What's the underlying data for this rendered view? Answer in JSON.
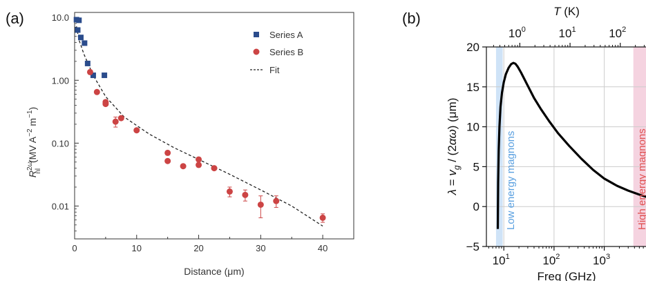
{
  "chart_data": [
    {
      "type": "scatter",
      "panel_label": "(a)",
      "xlabel": "Distance (μm)",
      "ylabel": "R_nl^2ω (MV A^-2 m^-1)",
      "ylabel_parts": {
        "main": "R",
        "sup": "2ω",
        "sub": "nl",
        "units": " (MV A",
        "unit_exp1": "−2",
        "units2": " m",
        "unit_exp2": "−1",
        "units3": ")"
      },
      "xlim": [
        0,
        45
      ],
      "ylim": [
        0.003,
        12
      ],
      "yscale": "log",
      "x_ticks": [
        0,
        10,
        20,
        30,
        40
      ],
      "x_tick_labels": [
        "0",
        "10",
        "20",
        "30",
        "40"
      ],
      "y_ticks": [
        0.01,
        0.1,
        1,
        10
      ],
      "y_tick_labels": [
        "0.01",
        "0.10",
        "1.00",
        "10.0"
      ],
      "legend_position": "top-right",
      "series": [
        {
          "name": "Series A",
          "marker": "square",
          "color": "#2b4c8c",
          "x": [
            0.3,
            0.5,
            0.7,
            1.0,
            1.6,
            2.1,
            3.0,
            4.8
          ],
          "y": [
            9.2,
            6.3,
            9.0,
            4.8,
            3.9,
            1.85,
            1.2,
            1.2
          ]
        },
        {
          "name": "Series B",
          "marker": "circle",
          "color": "#cc4444",
          "x": [
            2.5,
            3.6,
            5.0,
            5.0,
            6.6,
            7.5,
            10.0,
            15.0,
            15.0,
            17.5,
            20.0,
            20.0,
            22.5,
            25.0,
            27.5,
            30.0,
            32.5,
            40.0
          ],
          "y": [
            1.35,
            0.65,
            0.45,
            0.42,
            0.22,
            0.25,
            0.16,
            0.07,
            0.052,
            0.043,
            0.055,
            0.045,
            0.04,
            0.017,
            0.015,
            0.0105,
            0.012,
            0.0065
          ],
          "err": [
            0,
            0,
            0,
            0,
            0.04,
            0,
            0,
            0,
            0,
            0,
            0,
            0,
            0,
            0.003,
            0.003,
            0.004,
            0.0025,
            0.001
          ]
        },
        {
          "name": "Fit",
          "style": "dashed",
          "color": "#222222",
          "x": [
            0.3,
            0.7,
            1.5,
            3,
            5,
            8,
            12,
            16,
            20,
            25,
            30,
            35,
            40
          ],
          "y": [
            7.2,
            4.4,
            2.6,
            1.2,
            0.55,
            0.26,
            0.14,
            0.085,
            0.055,
            0.032,
            0.018,
            0.01,
            0.0048
          ]
        }
      ]
    },
    {
      "type": "line",
      "panel_label": "(b)",
      "xlabel": "Freq (GHz)",
      "ylabel": "λ = v_g / (2αω) (μm)",
      "ylabel_parts": {
        "lambda": "λ",
        "eq": " = ",
        "v": "v",
        "g": "g",
        "rest": " / (2",
        "alpha": "α",
        "omega": "ω",
        "units": ") (μm)"
      },
      "top_xlabel": "T (K)",
      "top_xlabel_parts": {
        "t": "T",
        "units": " (K)"
      },
      "xlim": [
        4.5,
        7000
      ],
      "xscale": "log",
      "ylim": [
        -5,
        20
      ],
      "grid": true,
      "x_ticks": [
        10,
        100,
        1000
      ],
      "x_tick_labels": [
        "10",
        "10",
        "10"
      ],
      "x_tick_exponents": [
        "1",
        "2",
        "3"
      ],
      "y_ticks": [
        -5,
        0,
        5,
        10,
        15,
        20
      ],
      "y_tick_labels": [
        "−5",
        "0",
        "5",
        "10",
        "15",
        "20"
      ],
      "top_ticks_K": [
        1,
        10,
        100
      ],
      "top_tick_labels": [
        "10",
        "10",
        "10"
      ],
      "top_tick_exponents": [
        "0",
        "1",
        "2"
      ],
      "bands": [
        {
          "label": "Low energy magnons",
          "from": 7,
          "to": 9.5,
          "fill": "#cfe3f7",
          "text_color": "#5aa0e0"
        },
        {
          "label": "High energy magnons",
          "from": 3800,
          "to": 7000,
          "fill": "#f5d3e0",
          "text_color": "#e05050"
        }
      ],
      "series": [
        {
          "color": "#000000",
          "x": [
            7.6,
            7.7,
            7.9,
            8.2,
            8.6,
            9.2,
            10,
            11,
            12.5,
            14,
            15.5,
            17,
            19,
            22,
            26,
            32,
            40,
            55,
            80,
            120,
            200,
            350,
            600,
            1000,
            1800,
            3000,
            5000,
            7000
          ],
          "y": [
            -2.8,
            3,
            7,
            10,
            12.5,
            14.3,
            15.6,
            16.6,
            17.4,
            17.85,
            18.0,
            17.9,
            17.5,
            16.8,
            15.9,
            14.8,
            13.6,
            12.2,
            10.7,
            9.2,
            7.6,
            6.0,
            4.6,
            3.5,
            2.6,
            2.0,
            1.5,
            1.2
          ]
        }
      ]
    }
  ]
}
